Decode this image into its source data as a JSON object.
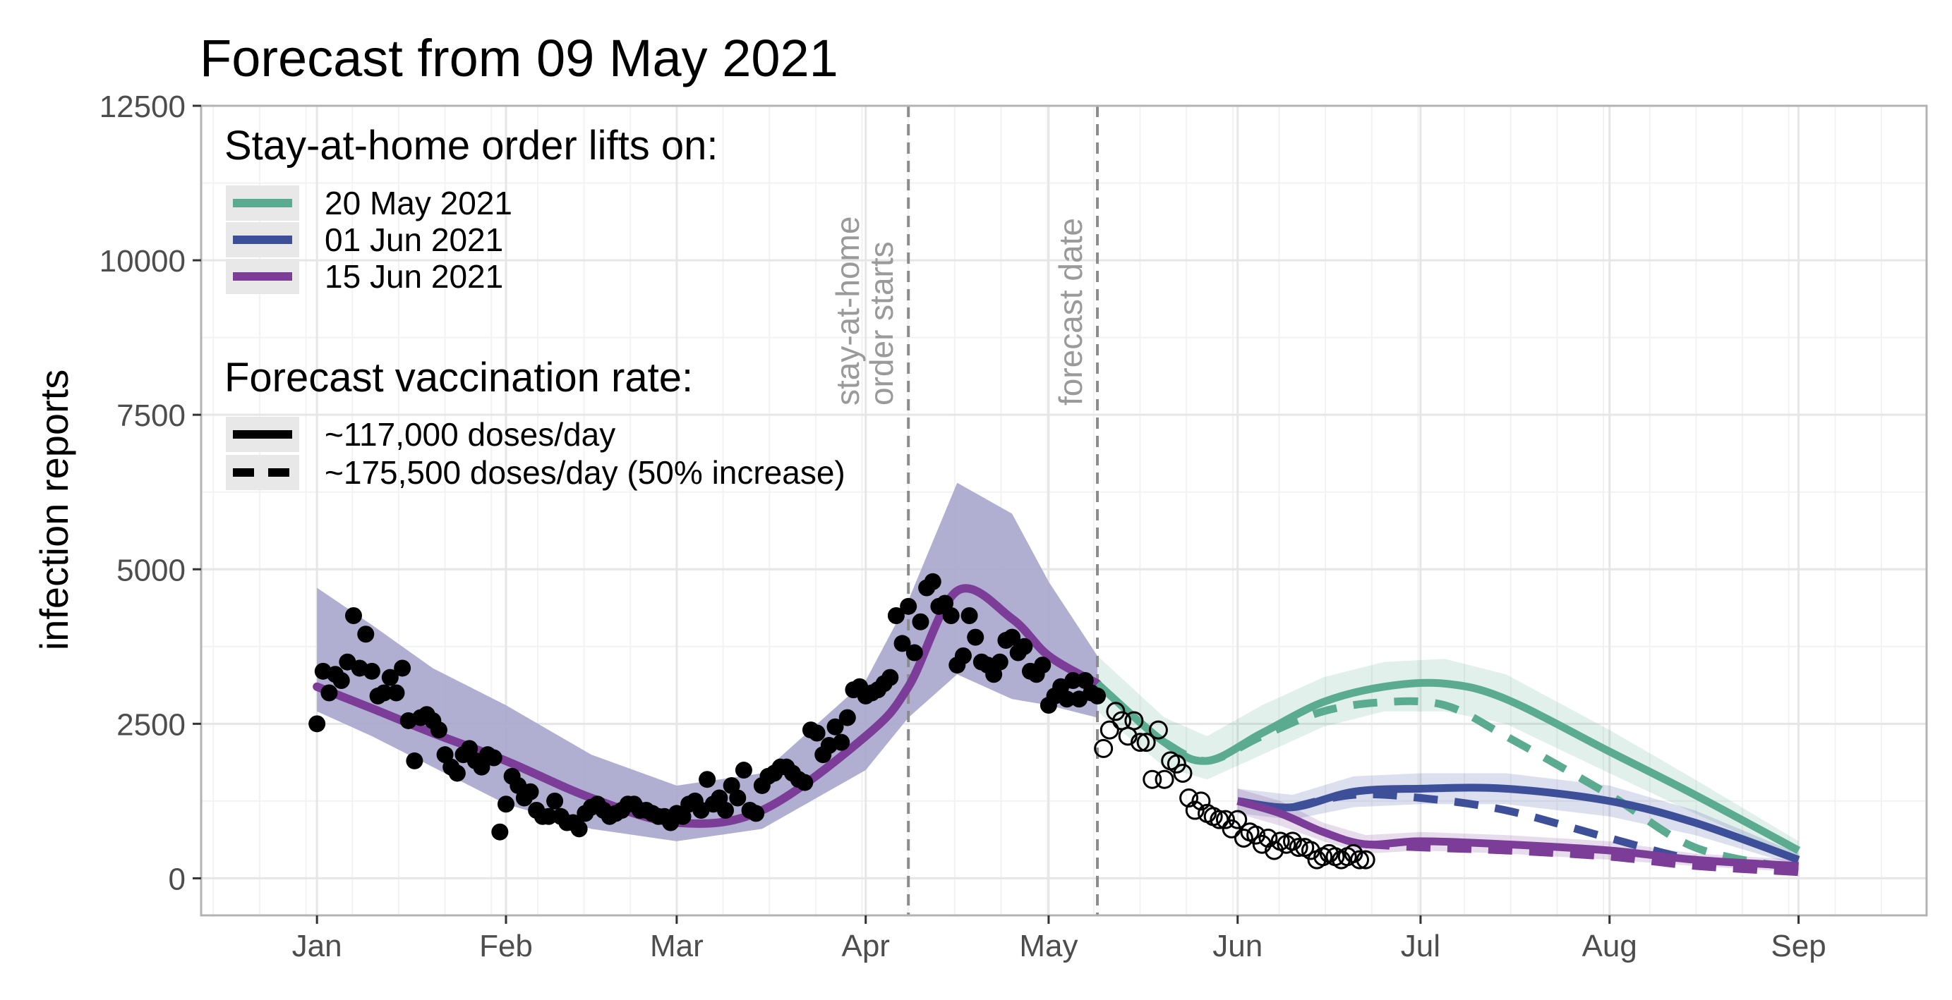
{
  "chart_data": {
    "type": "line",
    "title": "Forecast from 09 May 2021",
    "ylabel": "infection reports",
    "xlabel": "",
    "ylim": [
      -600,
      12500
    ],
    "yticks": [
      0,
      2500,
      5000,
      7500,
      10000,
      12500
    ],
    "xlim": [
      "2020-12-13",
      "2021-09-22"
    ],
    "xticks": [
      {
        "date": "2021-01-01",
        "label": "Jan"
      },
      {
        "date": "2021-02-01",
        "label": "Feb"
      },
      {
        "date": "2021-03-01",
        "label": "Mar"
      },
      {
        "date": "2021-04-01",
        "label": "Apr"
      },
      {
        "date": "2021-05-01",
        "label": "May"
      },
      {
        "date": "2021-06-01",
        "label": "Jun"
      },
      {
        "date": "2021-07-01",
        "label": "Jul"
      },
      {
        "date": "2021-08-01",
        "label": "Aug"
      },
      {
        "date": "2021-09-01",
        "label": "Sep"
      }
    ],
    "grid": true,
    "legend_position": "top-left",
    "vlines": [
      {
        "date": "2021-04-08",
        "label": "stay-at-home order starts",
        "lines": [
          "stay-at-home",
          "order starts"
        ]
      },
      {
        "date": "2021-05-09",
        "label": "forecast date",
        "lines": [
          "forecast date"
        ]
      }
    ],
    "legend": {
      "lift_title": "Stay-at-home order lifts on:",
      "lift_items": [
        {
          "label": "20 May 2021",
          "color": "#5aab8f"
        },
        {
          "label": "01 Jun 2021",
          "color": "#3d4f99"
        },
        {
          "label": "15 Jun 2021",
          "color": "#7b3d98"
        }
      ],
      "vacc_title": "Forecast vaccination rate:",
      "vacc_items": [
        {
          "label": "~117,000 doses/day",
          "style": "solid"
        },
        {
          "label": "~175,500 doses/day (50% increase)",
          "style": "dashed"
        }
      ]
    },
    "fitted": {
      "color": "#7b3d98",
      "band_color": "#a8a6cc",
      "x": [
        "2021-01-01",
        "2021-01-10",
        "2021-01-20",
        "2021-02-01",
        "2021-02-15",
        "2021-03-01",
        "2021-03-15",
        "2021-04-01",
        "2021-04-08",
        "2021-04-16",
        "2021-04-25",
        "2021-05-01",
        "2021-05-09"
      ],
      "y": [
        3100,
        2750,
        2350,
        1900,
        1300,
        900,
        1100,
        2300,
        3100,
        4650,
        4200,
        3600,
        3150
      ],
      "lower": [
        2700,
        2300,
        1800,
        1200,
        800,
        600,
        800,
        1750,
        2600,
        3300,
        2900,
        2800,
        2600
      ],
      "upper": [
        4700,
        4100,
        3400,
        2800,
        2000,
        1500,
        1700,
        3200,
        4500,
        6400,
        5900,
        4800,
        3600
      ]
    },
    "observed": {
      "x": [
        "2021-01-01",
        "2021-01-02",
        "2021-01-03",
        "2021-01-04",
        "2021-01-05",
        "2021-01-06",
        "2021-01-07",
        "2021-01-08",
        "2021-01-09",
        "2021-01-10",
        "2021-01-11",
        "2021-01-12",
        "2021-01-13",
        "2021-01-14",
        "2021-01-15",
        "2021-01-16",
        "2021-01-17",
        "2021-01-18",
        "2021-01-19",
        "2021-01-20",
        "2021-01-21",
        "2021-01-22",
        "2021-01-23",
        "2021-01-24",
        "2021-01-25",
        "2021-01-26",
        "2021-01-27",
        "2021-01-28",
        "2021-01-29",
        "2021-01-30",
        "2021-01-31",
        "2021-02-01",
        "2021-02-02",
        "2021-02-03",
        "2021-02-04",
        "2021-02-05",
        "2021-02-06",
        "2021-02-07",
        "2021-02-08",
        "2021-02-09",
        "2021-02-10",
        "2021-02-11",
        "2021-02-12",
        "2021-02-13",
        "2021-02-14",
        "2021-02-15",
        "2021-02-16",
        "2021-02-17",
        "2021-02-18",
        "2021-02-19",
        "2021-02-20",
        "2021-02-21",
        "2021-02-22",
        "2021-02-23",
        "2021-02-24",
        "2021-02-25",
        "2021-02-26",
        "2021-02-27",
        "2021-02-28",
        "2021-03-01",
        "2021-03-02",
        "2021-03-03",
        "2021-03-04",
        "2021-03-05",
        "2021-03-06",
        "2021-03-07",
        "2021-03-08",
        "2021-03-09",
        "2021-03-10",
        "2021-03-11",
        "2021-03-12",
        "2021-03-13",
        "2021-03-14",
        "2021-03-15",
        "2021-03-16",
        "2021-03-17",
        "2021-03-18",
        "2021-03-19",
        "2021-03-20",
        "2021-03-21",
        "2021-03-22",
        "2021-03-23",
        "2021-03-24",
        "2021-03-25",
        "2021-03-26",
        "2021-03-27",
        "2021-03-28",
        "2021-03-29",
        "2021-03-30",
        "2021-03-31",
        "2021-04-01",
        "2021-04-02",
        "2021-04-03",
        "2021-04-04",
        "2021-04-05",
        "2021-04-06",
        "2021-04-07",
        "2021-04-08",
        "2021-04-09",
        "2021-04-10",
        "2021-04-11",
        "2021-04-12",
        "2021-04-13",
        "2021-04-14",
        "2021-04-15",
        "2021-04-16",
        "2021-04-17",
        "2021-04-18",
        "2021-04-19",
        "2021-04-20",
        "2021-04-21",
        "2021-04-22",
        "2021-04-23",
        "2021-04-24",
        "2021-04-25",
        "2021-04-26",
        "2021-04-27",
        "2021-04-28",
        "2021-04-29",
        "2021-04-30",
        "2021-05-01",
        "2021-05-02",
        "2021-05-03",
        "2021-05-04",
        "2021-05-05",
        "2021-05-06",
        "2021-05-07",
        "2021-05-08",
        "2021-05-09"
      ],
      "y": [
        2500,
        3350,
        3000,
        3300,
        3200,
        3500,
        4250,
        3400,
        3950,
        3350,
        2950,
        3000,
        3250,
        3000,
        3400,
        2550,
        1900,
        2600,
        2650,
        2550,
        2400,
        2000,
        1800,
        1700,
        2000,
        2100,
        1900,
        1800,
        2000,
        1950,
        750,
        1200,
        1650,
        1500,
        1300,
        1400,
        1100,
        1000,
        1000,
        1250,
        1000,
        900,
        900,
        800,
        1050,
        1150,
        1200,
        1100,
        1000,
        1050,
        1100,
        1200,
        1200,
        1100,
        1100,
        1050,
        1000,
        1000,
        900,
        1050,
        1000,
        1200,
        1250,
        1100,
        1600,
        1200,
        1300,
        1100,
        1500,
        1300,
        1750,
        1100,
        1050,
        1500,
        1650,
        1700,
        1800,
        1800,
        1700,
        1600,
        1550,
        2400,
        2350,
        2000,
        2150,
        2450,
        2200,
        2600,
        3050,
        3100,
        2950,
        3000,
        3050,
        3150,
        3250,
        4250,
        3800,
        4400,
        3650,
        4150,
        4700,
        4800,
        4400,
        4450,
        4250,
        3450,
        3600,
        4250,
        3900,
        3500,
        3450,
        3300,
        3500,
        3850,
        3900,
        3650,
        3750,
        3350,
        3300,
        3450,
        2800,
        2950,
        3100,
        2900,
        3200,
        2900,
        3200,
        3000,
        2950
      ]
    },
    "future_observed": {
      "x": [
        "2021-05-10",
        "2021-05-11",
        "2021-05-12",
        "2021-05-13",
        "2021-05-14",
        "2021-05-15",
        "2021-05-16",
        "2021-05-17",
        "2021-05-18",
        "2021-05-19",
        "2021-05-20",
        "2021-05-21",
        "2021-05-22",
        "2021-05-23",
        "2021-05-24",
        "2021-05-25",
        "2021-05-26",
        "2021-05-27",
        "2021-05-28",
        "2021-05-29",
        "2021-05-30",
        "2021-05-31",
        "2021-06-01",
        "2021-06-02",
        "2021-06-03",
        "2021-06-04",
        "2021-06-05",
        "2021-06-06",
        "2021-06-07",
        "2021-06-08",
        "2021-06-09",
        "2021-06-10",
        "2021-06-11",
        "2021-06-12",
        "2021-06-13",
        "2021-06-14",
        "2021-06-15",
        "2021-06-16",
        "2021-06-17",
        "2021-06-18",
        "2021-06-19",
        "2021-06-20",
        "2021-06-21",
        "2021-06-22"
      ],
      "y": [
        2100,
        2400,
        2700,
        2550,
        2300,
        2550,
        2200,
        2200,
        1600,
        2400,
        1600,
        1900,
        1850,
        1700,
        1300,
        1100,
        1250,
        1050,
        1000,
        950,
        950,
        800,
        950,
        650,
        750,
        700,
        550,
        650,
        450,
        600,
        550,
        600,
        500,
        500,
        450,
        300,
        350,
        400,
        350,
        300,
        350,
        400,
        300,
        300
      ]
    },
    "forecasts": [
      {
        "lift": "20 May 2021",
        "color": "#5aab8f",
        "rate": "~117,000 doses/day",
        "x": [
          "2021-05-09",
          "2021-05-20",
          "2021-05-27",
          "2021-06-05",
          "2021-06-15",
          "2021-06-25",
          "2021-07-05",
          "2021-07-15",
          "2021-08-01",
          "2021-08-15",
          "2021-09-01"
        ],
        "y": [
          3150,
          2200,
          1900,
          2350,
          2850,
          3100,
          3150,
          2900,
          2050,
          1350,
          450
        ],
        "lower": [
          2700,
          1800,
          1600,
          2000,
          2450,
          2700,
          2700,
          2500,
          1700,
          1050,
          300
        ],
        "upper": [
          3600,
          2600,
          2300,
          2800,
          3250,
          3500,
          3550,
          3300,
          2400,
          1600,
          600
        ]
      },
      {
        "lift": "20 May 2021",
        "color": "#5aab8f",
        "rate": "~175,500 doses/day (50% increase)",
        "x": [
          "2021-05-20",
          "2021-05-27",
          "2021-06-05",
          "2021-06-15",
          "2021-06-25",
          "2021-07-05",
          "2021-07-15",
          "2021-08-01",
          "2021-08-15",
          "2021-09-01"
        ],
        "y": [
          2200,
          1900,
          2300,
          2700,
          2850,
          2800,
          2300,
          1350,
          500,
          150
        ]
      },
      {
        "lift": "01 Jun 2021",
        "color": "#3d4f99",
        "rate": "~117,000 doses/day",
        "x": [
          "2021-06-01",
          "2021-06-10",
          "2021-06-20",
          "2021-07-01",
          "2021-07-15",
          "2021-08-01",
          "2021-08-15",
          "2021-09-01"
        ],
        "y": [
          1250,
          1150,
          1400,
          1450,
          1450,
          1250,
          900,
          300
        ],
        "lower": [
          1050,
          950,
          1150,
          1200,
          1200,
          1000,
          700,
          200
        ],
        "upper": [
          1450,
          1350,
          1650,
          1700,
          1700,
          1500,
          1100,
          400
        ]
      },
      {
        "lift": "01 Jun 2021",
        "color": "#3d4f99",
        "rate": "~175,500 doses/day (50% increase)",
        "x": [
          "2021-06-10",
          "2021-06-20",
          "2021-07-01",
          "2021-07-15",
          "2021-08-01",
          "2021-08-15",
          "2021-09-01"
        ],
        "y": [
          1150,
          1350,
          1300,
          1100,
          650,
          300,
          100
        ]
      },
      {
        "lift": "15 Jun 2021",
        "color": "#7b3d98",
        "rate": "~117,000 doses/day",
        "x": [
          "2021-06-01",
          "2021-06-08",
          "2021-06-15",
          "2021-06-22",
          "2021-07-01",
          "2021-07-15",
          "2021-08-01",
          "2021-08-15",
          "2021-09-01"
        ],
        "y": [
          1250,
          1050,
          750,
          550,
          600,
          550,
          450,
          300,
          200
        ],
        "lower": [
          1050,
          850,
          600,
          400,
          450,
          400,
          300,
          200,
          100
        ],
        "upper": [
          1450,
          1250,
          900,
          700,
          750,
          700,
          600,
          400,
          300
        ]
      },
      {
        "lift": "15 Jun 2021",
        "color": "#7b3d98",
        "rate": "~175,500 doses/day (50% increase)",
        "x": [
          "2021-06-22",
          "2021-07-01",
          "2021-07-15",
          "2021-08-01",
          "2021-08-15",
          "2021-09-01"
        ],
        "y": [
          550,
          500,
          450,
          350,
          200,
          100
        ]
      }
    ]
  }
}
